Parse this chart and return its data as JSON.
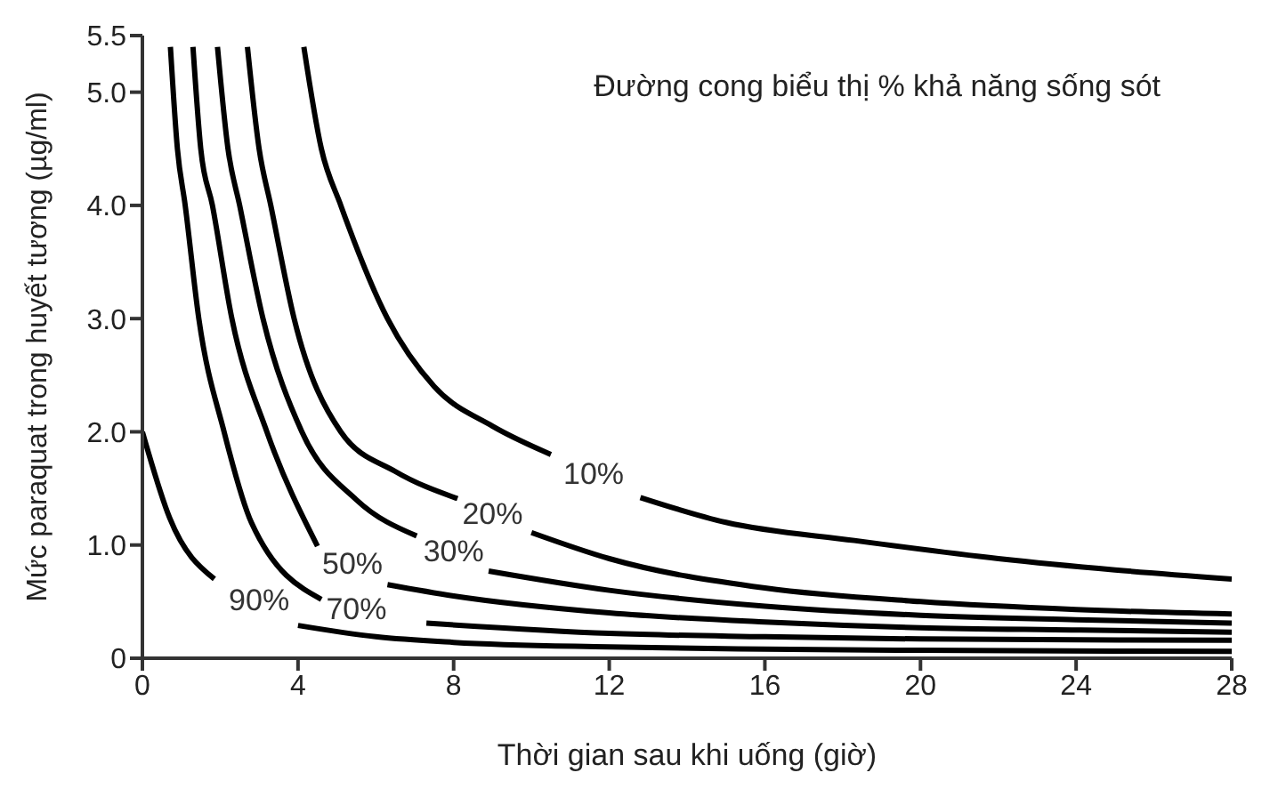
{
  "chart_data": {
    "type": "line",
    "xlabel": "Thời gian sau khi uống (giờ)",
    "ylabel": "Mức paraquat trong huyết tương (µg/ml)",
    "xlim": [
      0,
      28
    ],
    "xticks": [
      0,
      4,
      8,
      12,
      16,
      20,
      24,
      28
    ],
    "ylim": [
      0,
      5.5
    ],
    "yticks": [
      0,
      {
        "value": 1,
        "label": "1.0"
      },
      {
        "value": 2,
        "label": "2.0"
      },
      {
        "value": 3,
        "label": "3.0"
      },
      {
        "value": 4,
        "label": "4.0"
      },
      {
        "value": 5,
        "label": "5.0"
      },
      {
        "value": 5.5,
        "label": "5.5"
      }
    ],
    "grid": false,
    "marker": "none",
    "line_style": "solid",
    "series": [
      {
        "name": "10%",
        "color": "#000000",
        "x": [
          4.15,
          4.6,
          5.1,
          6.3,
          7.5,
          9,
          10.5,
          11.6,
          12.8,
          15,
          18.3,
          22,
          25,
          28
        ],
        "values": [
          5.4,
          4.5,
          4.0,
          3.0,
          2.4,
          2.05,
          1.8,
          null,
          1.42,
          1.2,
          1.04,
          0.88,
          0.78,
          0.7
        ]
      },
      {
        "name": "20%",
        "color": "#000000",
        "x": [
          2.7,
          3.0,
          3.3,
          3.9,
          5.1,
          6.5,
          8.1,
          9.0,
          10.0,
          12,
          16,
          20,
          24,
          28
        ],
        "values": [
          5.4,
          4.5,
          4.0,
          3.0,
          2.0,
          1.65,
          1.41,
          null,
          1.11,
          0.88,
          0.62,
          0.5,
          0.43,
          0.39
        ]
      },
      {
        "name": "30%",
        "color": "#000000",
        "x": [
          1.93,
          2.2,
          2.5,
          3.1,
          4.1,
          5.5,
          7.05,
          8.0,
          8.9,
          12,
          16,
          20,
          24,
          28
        ],
        "values": [
          5.4,
          4.5,
          4.0,
          3.0,
          2.0,
          1.4,
          1.08,
          null,
          0.77,
          0.6,
          0.46,
          0.38,
          0.34,
          0.31
        ]
      },
      {
        "name": "50%",
        "color": "#000000",
        "x": [
          1.3,
          1.5,
          1.8,
          2.3,
          3.2,
          4.5,
          5.4,
          6.3,
          8,
          12,
          16,
          20,
          24,
          28
        ],
        "values": [
          5.4,
          4.5,
          4.0,
          3.0,
          2.0,
          0.99,
          null,
          0.65,
          0.55,
          0.4,
          0.32,
          0.27,
          0.25,
          0.23
        ]
      },
      {
        "name": "70%",
        "color": "#000000",
        "x": [
          0.72,
          0.9,
          1.1,
          1.45,
          2.1,
          2.8,
          4.6,
          5.5,
          7.3,
          12,
          16,
          20,
          28
        ],
        "values": [
          5.4,
          4.5,
          4.0,
          3.0,
          2.0,
          1.2,
          0.52,
          null,
          0.31,
          0.22,
          0.19,
          0.17,
          0.16
        ]
      },
      {
        "name": "90%",
        "color": "#000000",
        "x": [
          0.0,
          0.7,
          1.85,
          3.0,
          4.0,
          6,
          8,
          12,
          16,
          20,
          28
        ],
        "values": [
          2.0,
          1.24,
          0.7,
          null,
          0.29,
          0.19,
          0.14,
          0.1,
          0.08,
          0.07,
          0.06
        ]
      }
    ],
    "annotations": [
      "Đường cong biểu thị % khả năng sống sót"
    ]
  }
}
